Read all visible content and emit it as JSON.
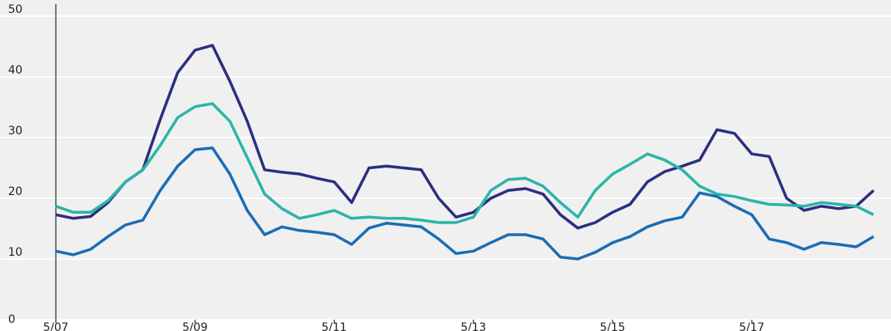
{
  "chart_data": {
    "type": "line",
    "x": [
      0,
      0.25,
      0.5,
      0.75,
      1,
      1.25,
      1.5,
      1.75,
      2,
      2.25,
      2.5,
      2.75,
      3,
      3.25,
      3.5,
      3.75,
      4,
      4.25,
      4.5,
      4.75,
      5,
      5.25,
      5.5,
      5.75,
      6,
      6.25,
      6.5,
      6.75,
      7,
      7.25,
      7.5,
      7.75,
      8,
      8.25,
      8.5,
      8.75,
      9,
      9.25,
      9.5,
      9.75,
      10,
      10.25,
      10.5,
      10.75,
      11,
      11.25,
      11.5,
      11.75
    ],
    "series": [
      {
        "color": "#2b2f80",
        "values": [
          17.3,
          16.7,
          17.0,
          19.3,
          22.7,
          24.7,
          33,
          40.7,
          44.4,
          45.2,
          39.3,
          32.7,
          24.7,
          24.3,
          24,
          23.3,
          22.7,
          19.3,
          25,
          25.3,
          25,
          24.7,
          20,
          16.9,
          17.7,
          20,
          21.3,
          21.6,
          20.7,
          17.3,
          15.1,
          16,
          17.7,
          19,
          22.7,
          24.4,
          25.3,
          26.3,
          31.3,
          30.7,
          27.3,
          26.9,
          20,
          18,
          18.7,
          18.3,
          18.7,
          21.3
        ]
      },
      {
        "color": "#2bb5a8",
        "values": [
          18.7,
          17.7,
          17.7,
          19.6,
          22.7,
          24.7,
          28.7,
          33.3,
          35.1,
          35.6,
          32.7,
          26.7,
          20.7,
          18.3,
          16.7,
          17.3,
          18,
          16.7,
          16.9,
          16.7,
          16.7,
          16.4,
          16,
          16,
          16.9,
          21.3,
          23.1,
          23.3,
          22,
          19.3,
          16.9,
          21.3,
          24,
          25.6,
          27.3,
          26.3,
          24.7,
          22,
          20.7,
          20.3,
          19.6,
          19,
          18.9,
          18.7,
          19.3,
          19,
          18.7,
          17.3
        ]
      },
      {
        "color": "#1a6db5",
        "values": [
          11.3,
          10.7,
          11.6,
          13.7,
          15.6,
          16.4,
          21.3,
          25.3,
          28,
          28.3,
          24,
          18,
          14,
          15.3,
          14.7,
          14.4,
          14,
          12.4,
          15.1,
          15.9,
          15.6,
          15.3,
          13.3,
          10.9,
          11.3,
          12.7,
          14,
          14,
          13.3,
          10.3,
          10,
          11.1,
          12.7,
          13.7,
          15.3,
          16.3,
          16.9,
          20.9,
          20.3,
          18.7,
          17.3,
          13.3,
          12.7,
          11.6,
          12.7,
          12.4,
          12,
          13.7
        ]
      }
    ],
    "xlim": [
      0,
      12
    ],
    "xticks": [
      {
        "value": 0,
        "label": "5/07"
      },
      {
        "value": 2,
        "label": "5/09"
      },
      {
        "value": 4,
        "label": "5/11"
      },
      {
        "value": 6,
        "label": "5/13"
      },
      {
        "value": 8,
        "label": "5/15"
      },
      {
        "value": 10,
        "label": "5/17"
      }
    ],
    "ylim": [
      0,
      50
    ],
    "yticks": [
      0,
      10,
      20,
      30,
      40,
      50
    ],
    "grid": true
  }
}
